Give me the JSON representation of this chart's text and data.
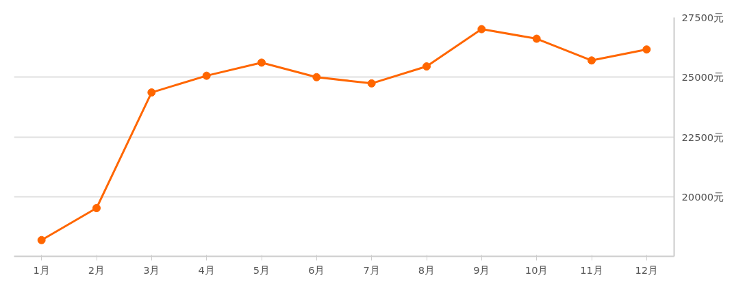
{
  "chart_data": {
    "type": "line",
    "categories": [
      "1月",
      "2月",
      "3月",
      "4月",
      "5月",
      "6月",
      "7月",
      "8月",
      "9月",
      "10月",
      "11月",
      "12月"
    ],
    "series": [
      {
        "color": "#ff6600",
        "values": [
          18180,
          19520,
          24360,
          25060,
          25610,
          25000,
          24740,
          25450,
          27010,
          26610,
          25700,
          26160
        ]
      }
    ],
    "ylim": [
      17500,
      27500
    ],
    "yticks": [
      {
        "value": 20000,
        "label": "20000元"
      },
      {
        "value": 22500,
        "label": "22500元"
      },
      {
        "value": 25000,
        "label": "25000元"
      },
      {
        "value": 27500,
        "label": "27500元"
      }
    ],
    "grid": "y",
    "marker": "circle",
    "line_style": "solid"
  }
}
